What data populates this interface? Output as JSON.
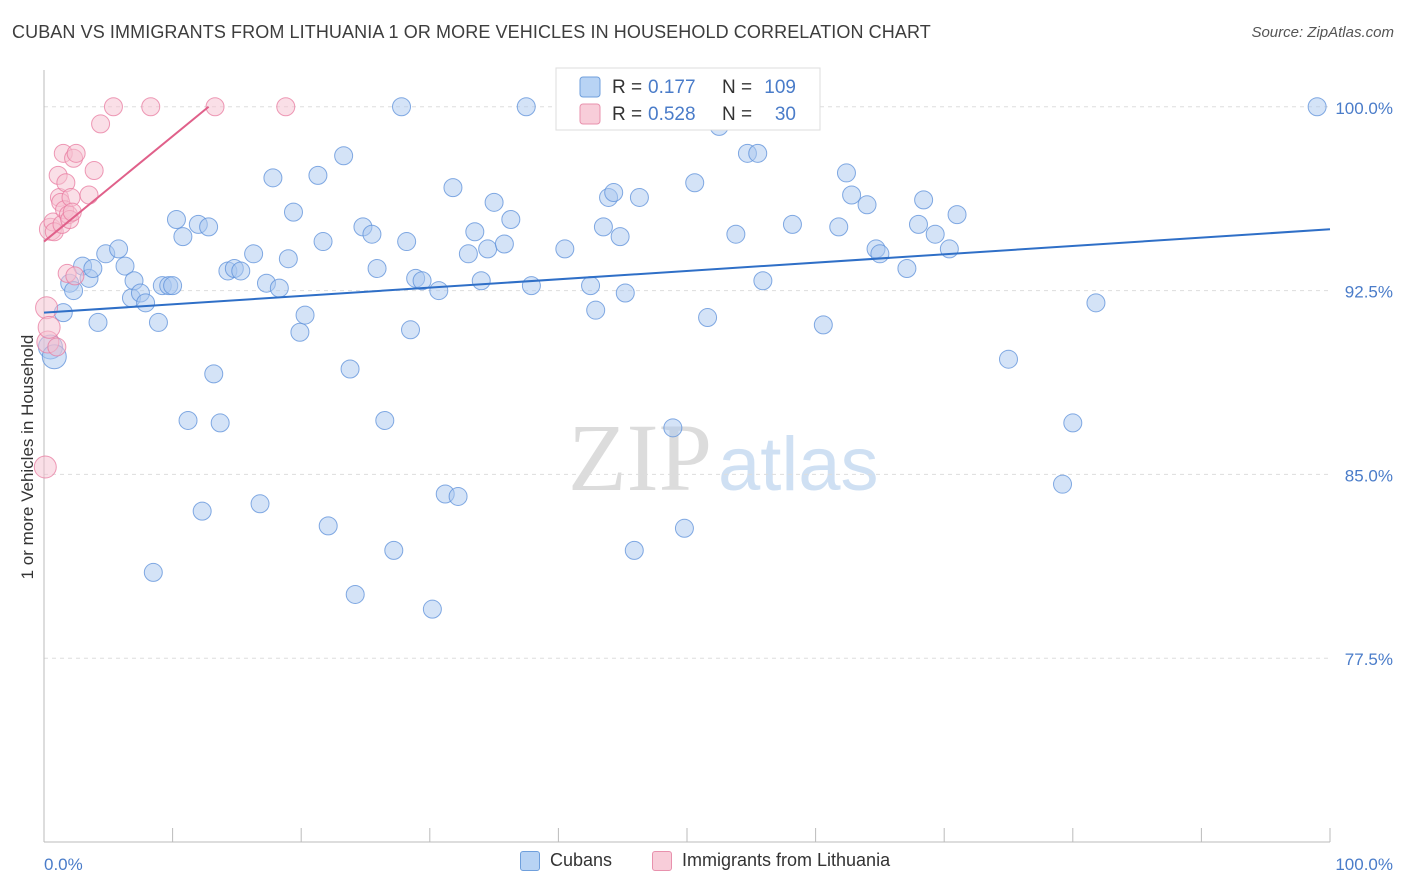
{
  "title": "CUBAN VS IMMIGRANTS FROM LITHUANIA 1 OR MORE VEHICLES IN HOUSEHOLD CORRELATION CHART",
  "source": "Source: ZipAtlas.com",
  "watermark": {
    "zip": "ZIP",
    "atlas": "atlas"
  },
  "colors": {
    "blue": "#5b8fd9",
    "blue_fill": "#a9c8f0",
    "blue_line": "#2f6fc7",
    "pink": "#e87a9f",
    "pink_fill": "#f5bfd0",
    "pink_line": "#e0608a",
    "axis_text": "#4a7cc9",
    "grid": "#dddddd"
  },
  "chart_data": {
    "type": "scatter",
    "title": "CUBAN VS IMMIGRANTS FROM LITHUANIA 1 OR MORE VEHICLES IN HOUSEHOLD CORRELATION CHART",
    "xlabel": "",
    "ylabel": "1 or more Vehicles in Household",
    "xlim": [
      0,
      100
    ],
    "ylim": [
      70.0,
      101.5
    ],
    "x_tick_labels": [
      "0.0%",
      "100.0%"
    ],
    "y_ticks": [
      77.5,
      85.0,
      92.5,
      100.0
    ],
    "y_tick_labels": [
      "77.5%",
      "85.0%",
      "92.5%",
      "100.0%"
    ],
    "grid": true,
    "legend_position": "bottom",
    "stats": [
      {
        "r_label": "R =",
        "r_value": "0.177",
        "n_label": "N =",
        "n_value": "109"
      },
      {
        "r_label": "R =",
        "r_value": "0.528",
        "n_label": "N =",
        "n_value": "30"
      }
    ],
    "series": [
      {
        "name": "Cubans",
        "color": "#5b8fd9",
        "trend": {
          "x": [
            0,
            100
          ],
          "y": [
            91.6,
            95.0
          ]
        },
        "points": [
          [
            0.5,
            90.2
          ],
          [
            0.8,
            89.8
          ],
          [
            1.5,
            91.6
          ],
          [
            2.0,
            92.8
          ],
          [
            2.3,
            92.5
          ],
          [
            3.0,
            93.5
          ],
          [
            3.5,
            93.0
          ],
          [
            3.8,
            93.4
          ],
          [
            4.2,
            91.2
          ],
          [
            4.8,
            94.0
          ],
          [
            5.8,
            94.2
          ],
          [
            6.3,
            93.5
          ],
          [
            6.8,
            92.2
          ],
          [
            7.0,
            92.9
          ],
          [
            7.5,
            92.4
          ],
          [
            7.9,
            92.0
          ],
          [
            8.5,
            81.0
          ],
          [
            8.9,
            91.2
          ],
          [
            9.2,
            92.7
          ],
          [
            9.7,
            92.7
          ],
          [
            10.0,
            92.7
          ],
          [
            10.3,
            95.4
          ],
          [
            10.8,
            94.7
          ],
          [
            11.2,
            87.2
          ],
          [
            12.0,
            95.2
          ],
          [
            12.3,
            83.5
          ],
          [
            12.8,
            95.1
          ],
          [
            13.2,
            89.1
          ],
          [
            13.7,
            87.1
          ],
          [
            14.3,
            93.3
          ],
          [
            14.8,
            93.4
          ],
          [
            15.3,
            93.3
          ],
          [
            16.3,
            94.0
          ],
          [
            16.8,
            83.8
          ],
          [
            17.3,
            92.8
          ],
          [
            17.8,
            97.1
          ],
          [
            18.3,
            92.6
          ],
          [
            19.0,
            93.8
          ],
          [
            19.4,
            95.7
          ],
          [
            19.9,
            90.8
          ],
          [
            20.3,
            91.5
          ],
          [
            21.3,
            97.2
          ],
          [
            21.7,
            94.5
          ],
          [
            22.1,
            82.9
          ],
          [
            23.3,
            98.0
          ],
          [
            23.8,
            89.3
          ],
          [
            24.2,
            80.1
          ],
          [
            24.8,
            95.1
          ],
          [
            25.5,
            94.8
          ],
          [
            25.9,
            93.4
          ],
          [
            26.5,
            87.2
          ],
          [
            27.2,
            81.9
          ],
          [
            27.8,
            100.0
          ],
          [
            28.2,
            94.5
          ],
          [
            28.5,
            90.9
          ],
          [
            28.9,
            93.0
          ],
          [
            29.4,
            92.9
          ],
          [
            30.2,
            79.5
          ],
          [
            30.7,
            92.5
          ],
          [
            31.2,
            84.2
          ],
          [
            31.8,
            96.7
          ],
          [
            32.2,
            84.1
          ],
          [
            33.0,
            94.0
          ],
          [
            33.5,
            94.9
          ],
          [
            34.0,
            92.9
          ],
          [
            34.5,
            94.2
          ],
          [
            35.0,
            96.1
          ],
          [
            35.8,
            94.4
          ],
          [
            36.3,
            95.4
          ],
          [
            37.5,
            100.0
          ],
          [
            37.9,
            92.7
          ],
          [
            40.5,
            94.2
          ],
          [
            42.5,
            92.7
          ],
          [
            42.9,
            91.7
          ],
          [
            43.5,
            95.1
          ],
          [
            43.9,
            96.3
          ],
          [
            44.3,
            96.5
          ],
          [
            44.8,
            94.7
          ],
          [
            45.2,
            92.4
          ],
          [
            45.9,
            81.9
          ],
          [
            46.3,
            96.3
          ],
          [
            48.9,
            86.9
          ],
          [
            49.8,
            82.8
          ],
          [
            50.6,
            96.9
          ],
          [
            51.6,
            91.4
          ],
          [
            52.5,
            99.2
          ],
          [
            53.8,
            94.8
          ],
          [
            54.7,
            98.1
          ],
          [
            55.5,
            98.1
          ],
          [
            55.9,
            92.9
          ],
          [
            58.2,
            95.2
          ],
          [
            60.6,
            91.1
          ],
          [
            61.8,
            95.1
          ],
          [
            62.4,
            97.3
          ],
          [
            62.8,
            96.4
          ],
          [
            64.0,
            96.0
          ],
          [
            64.7,
            94.2
          ],
          [
            65.0,
            94.0
          ],
          [
            67.1,
            93.4
          ],
          [
            68.0,
            95.2
          ],
          [
            68.4,
            96.2
          ],
          [
            69.3,
            94.8
          ],
          [
            70.4,
            94.2
          ],
          [
            71.0,
            95.6
          ],
          [
            75.0,
            89.7
          ],
          [
            79.2,
            84.6
          ],
          [
            80.0,
            87.1
          ],
          [
            81.8,
            92.0
          ],
          [
            99.0,
            100.0
          ]
        ]
      },
      {
        "name": "Immigrants from Lithuania",
        "color": "#e87a9f",
        "trend": {
          "x": [
            0,
            12.8
          ],
          "y": [
            94.5,
            100.0
          ]
        },
        "points": [
          [
            0.1,
            85.3
          ],
          [
            0.2,
            91.8
          ],
          [
            0.3,
            90.4
          ],
          [
            0.4,
            91.0
          ],
          [
            0.5,
            95.0
          ],
          [
            0.7,
            95.3
          ],
          [
            0.8,
            94.9
          ],
          [
            1.0,
            90.2
          ],
          [
            1.1,
            97.2
          ],
          [
            1.2,
            96.3
          ],
          [
            1.3,
            96.1
          ],
          [
            1.4,
            95.2
          ],
          [
            1.5,
            98.1
          ],
          [
            1.6,
            95.8
          ],
          [
            1.7,
            96.9
          ],
          [
            1.8,
            93.2
          ],
          [
            1.9,
            95.6
          ],
          [
            2.0,
            95.4
          ],
          [
            2.1,
            96.3
          ],
          [
            2.2,
            95.7
          ],
          [
            2.3,
            97.9
          ],
          [
            2.4,
            93.1
          ],
          [
            2.5,
            98.1
          ],
          [
            3.5,
            96.4
          ],
          [
            3.9,
            97.4
          ],
          [
            4.4,
            99.3
          ],
          [
            5.4,
            100.0
          ],
          [
            8.3,
            100.0
          ],
          [
            13.3,
            100.0
          ],
          [
            18.8,
            100.0
          ]
        ]
      }
    ]
  },
  "legend": {
    "items": [
      "Cubans",
      "Immigrants from Lithuania"
    ]
  }
}
